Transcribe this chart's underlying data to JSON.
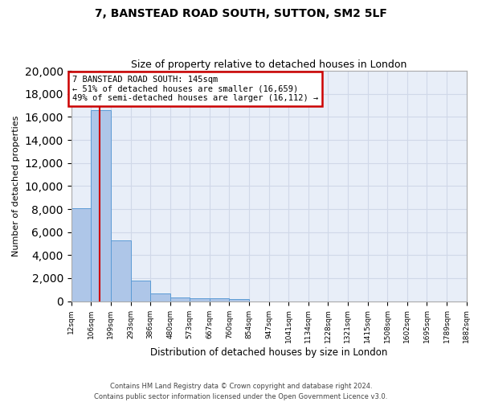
{
  "title1": "7, BANSTEAD ROAD SOUTH, SUTTON, SM2 5LF",
  "title2": "Size of property relative to detached houses in London",
  "xlabel": "Distribution of detached houses by size in London",
  "ylabel": "Number of detached properties",
  "bar_edges": [
    12,
    106,
    199,
    293,
    386,
    480,
    573,
    667,
    760,
    854,
    947,
    1041,
    1134,
    1228,
    1321,
    1415,
    1508,
    1602,
    1695,
    1789,
    1882
  ],
  "bar_values": [
    8100,
    16600,
    5300,
    1800,
    650,
    350,
    270,
    230,
    200,
    0,
    0,
    0,
    0,
    0,
    0,
    0,
    0,
    0,
    0,
    0
  ],
  "bar_color": "#aec6e8",
  "bar_edge_color": "#5b9bd5",
  "grid_color": "#d0d8e8",
  "annotation_box_color": "#cc0000",
  "property_line_x": 145,
  "annotation_line1": "7 BANSTEAD ROAD SOUTH: 145sqm",
  "annotation_line2": "← 51% of detached houses are smaller (16,659)",
  "annotation_line3": "49% of semi-detached houses are larger (16,112) →",
  "ylim": [
    0,
    20000
  ],
  "yticks": [
    0,
    2000,
    4000,
    6000,
    8000,
    10000,
    12000,
    14000,
    16000,
    18000,
    20000
  ],
  "tick_labels": [
    "12sqm",
    "106sqm",
    "199sqm",
    "293sqm",
    "386sqm",
    "480sqm",
    "573sqm",
    "667sqm",
    "760sqm",
    "854sqm",
    "947sqm",
    "1041sqm",
    "1134sqm",
    "1228sqm",
    "1321sqm",
    "1415sqm",
    "1508sqm",
    "1602sqm",
    "1695sqm",
    "1789sqm",
    "1882sqm"
  ],
  "footer1": "Contains HM Land Registry data © Crown copyright and database right 2024.",
  "footer2": "Contains public sector information licensed under the Open Government Licence v3.0.",
  "bg_color": "#e8eef8"
}
